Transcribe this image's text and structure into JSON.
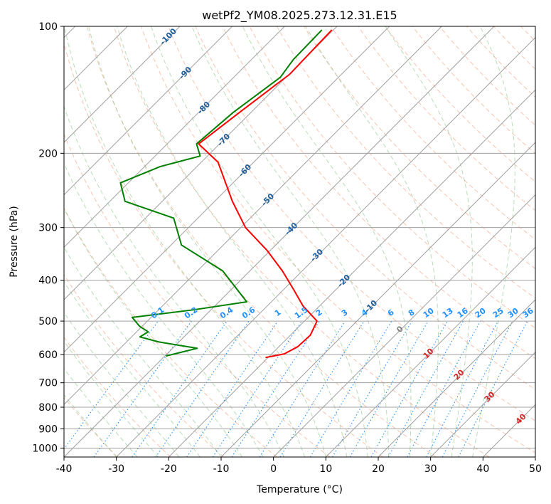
{
  "chart_data": {
    "type": "line",
    "title": "wetPf2_YM08.2025.273.12.31.E15",
    "xlabel": "Temperature (°C)",
    "ylabel": "Pressure (hPa)",
    "xlim": [
      -40,
      50
    ],
    "ylim_hpa": [
      1050,
      100
    ],
    "y_scale": "log",
    "x_ticks": [
      "-40",
      "-30",
      "-20",
      "-10",
      "0",
      "10",
      "20",
      "30",
      "40",
      "50"
    ],
    "x_tick_values": [
      -40,
      -30,
      -20,
      -10,
      0,
      10,
      20,
      30,
      40,
      50
    ],
    "y_ticks": [
      "100",
      "200",
      "300",
      "400",
      "500",
      "600",
      "700",
      "800",
      "900",
      "1000"
    ],
    "y_tick_values": [
      100,
      200,
      300,
      400,
      500,
      600,
      700,
      800,
      900,
      1000
    ],
    "grid": true,
    "skew_isotherm_labels": {
      "values": [
        -100,
        -90,
        -80,
        -70,
        -60,
        -50,
        -40,
        -30,
        -20,
        -10
      ],
      "labels": [
        "-100",
        "-90",
        "-80",
        "-70",
        "-60",
        "-50",
        "-40",
        "-30",
        "-20",
        "-10"
      ],
      "color": "#1f5f9e"
    },
    "mixing_ratio_labels": {
      "values": [
        0.1,
        0.2,
        0.4,
        0.6,
        1,
        1.5,
        2,
        3,
        4,
        6,
        8,
        10,
        13,
        16,
        20,
        25,
        30,
        36
      ],
      "labels": [
        "0.1",
        "0.2",
        "0.4",
        "0.6",
        "1",
        "1.5",
        "2",
        "3",
        "4",
        "6",
        "8",
        "10",
        "13",
        "16",
        "20",
        "25",
        "30",
        "36"
      ],
      "color": "#1e90ff"
    },
    "positive_isotherm_labels": {
      "values": [
        0,
        10,
        20,
        30,
        40
      ],
      "labels": [
        "0",
        "10",
        "20",
        "30",
        "40"
      ],
      "color_zero": "#808080",
      "color_positive": "#d62728"
    },
    "series": [
      {
        "color": "#ff0000",
        "points": [
          {
            "p": 102,
            "t": -70.3
          },
          {
            "p": 130,
            "t": -69.9
          },
          {
            "p": 160,
            "t": -72.2
          },
          {
            "p": 190,
            "t": -74.0
          },
          {
            "p": 210,
            "t": -66.8
          },
          {
            "p": 260,
            "t": -56.6
          },
          {
            "p": 300,
            "t": -49.1
          },
          {
            "p": 340,
            "t": -40.6
          },
          {
            "p": 380,
            "t": -33.8
          },
          {
            "p": 420,
            "t": -28.2
          },
          {
            "p": 460,
            "t": -23.2
          },
          {
            "p": 500,
            "t": -17.6
          },
          {
            "p": 540,
            "t": -16.2
          },
          {
            "p": 575,
            "t": -16.4
          },
          {
            "p": 598,
            "t": -17.6
          },
          {
            "p": 610,
            "t": -20.5
          }
        ]
      },
      {
        "color": "#008000",
        "points": [
          {
            "p": 102,
            "t": -72.2
          },
          {
            "p": 120,
            "t": -72.0
          },
          {
            "p": 132,
            "t": -71.1
          },
          {
            "p": 160,
            "t": -73.4
          },
          {
            "p": 190,
            "t": -74.4
          },
          {
            "p": 203,
            "t": -71.4
          },
          {
            "p": 215,
            "t": -77.0
          },
          {
            "p": 235,
            "t": -81.5
          },
          {
            "p": 260,
            "t": -77.1
          },
          {
            "p": 285,
            "t": -64.6
          },
          {
            "p": 330,
            "t": -58.0
          },
          {
            "p": 380,
            "t": -45.2
          },
          {
            "p": 450,
            "t": -34.7
          },
          {
            "p": 470,
            "t": -43.3
          },
          {
            "p": 490,
            "t": -53.6
          },
          {
            "p": 515,
            "t": -50.4
          },
          {
            "p": 530,
            "t": -47.8
          },
          {
            "p": 545,
            "t": -48.4
          },
          {
            "p": 560,
            "t": -43.9
          },
          {
            "p": 580,
            "t": -35.3
          },
          {
            "p": 605,
            "t": -39.8
          }
        ]
      }
    ]
  }
}
